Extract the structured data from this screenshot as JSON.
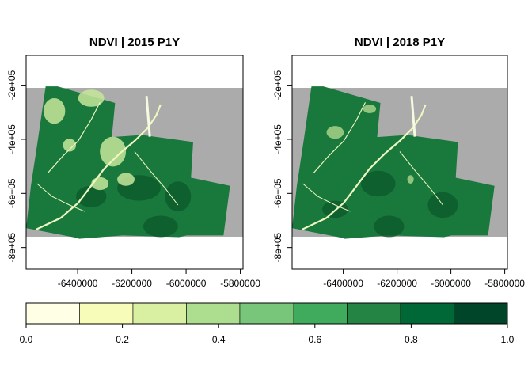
{
  "chart_data": {
    "type": "raster-map",
    "panels": [
      {
        "title": "NDVI | 2015 P1Y",
        "xticks": [
          -6400000,
          -6200000,
          -6000000,
          -5800000
        ],
        "xtick_labels": [
          "-6400000",
          "-6200000",
          "-6000000",
          "-5800000"
        ],
        "yticks": [
          -200000,
          -400000,
          -600000,
          -800000
        ],
        "ytick_labels": [
          "-2e+05",
          "-4e+05",
          "-6e+05",
          "-8e+05"
        ],
        "xlim": [
          -6590000,
          -5790000
        ],
        "ylim": [
          -880000,
          -90000
        ],
        "grey_band_y": [
          -760000,
          -210000
        ],
        "box": true
      },
      {
        "title": "NDVI | 2018 P1Y",
        "xticks": [
          -6400000,
          -6200000,
          -6000000,
          -5800000
        ],
        "xtick_labels": [
          "-6400000",
          "-6200000",
          "-6000000",
          "-5800000"
        ],
        "yticks": [
          -200000,
          -400000,
          -600000,
          -800000
        ],
        "ytick_labels": [
          "-2e+05",
          "-4e+05",
          "-6e+05",
          "-8e+05"
        ],
        "xlim": [
          -6590000,
          -5790000
        ],
        "ylim": [
          -880000,
          -90000
        ],
        "grey_band_y": [
          -760000,
          -210000
        ],
        "box": true
      }
    ],
    "legend": {
      "type": "colorbar",
      "breaks": [
        0.0,
        0.111,
        0.222,
        0.333,
        0.444,
        0.556,
        0.667,
        0.778,
        0.889,
        1.0
      ],
      "colors": [
        "#ffffe5",
        "#f7fcb9",
        "#d9f0a3",
        "#addd8e",
        "#78c679",
        "#41ab5d",
        "#238443",
        "#006837",
        "#004529"
      ],
      "ticks": [
        0.0,
        0.2,
        0.4,
        0.6,
        0.8,
        1.0
      ],
      "tick_labels": [
        "0.0",
        "0.2",
        "0.4",
        "0.6",
        "0.8",
        "1.0"
      ],
      "placement": "bottom"
    },
    "colors": {
      "na_band": "#ababab",
      "raster_main": "#19783c",
      "raster_dark": "#0b5a2a",
      "river": "#eef7c0",
      "light_patch": "#c5e69a"
    }
  }
}
